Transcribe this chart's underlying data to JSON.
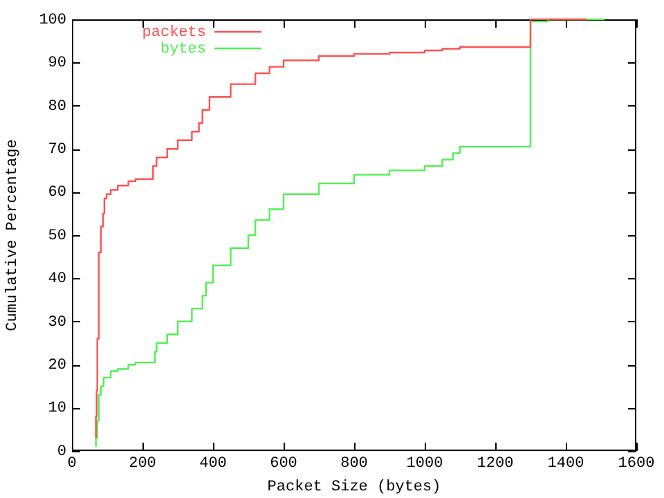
{
  "chart_data": {
    "type": "step",
    "xlabel": "Packet Size (bytes)",
    "ylabel": "Cumulative Percentage",
    "xlim": [
      0,
      1600
    ],
    "xticks": [
      0,
      200,
      400,
      600,
      800,
      1000,
      1200,
      1400,
      1600
    ],
    "ylim": [
      0,
      100
    ],
    "yticks": [
      0,
      10,
      20,
      30,
      40,
      50,
      60,
      70,
      80,
      90,
      100
    ],
    "grid": false,
    "legend": "top left",
    "marker": "none",
    "line_style": "solid",
    "series": [
      {
        "name": "packets",
        "color": "#ff5050",
        "x": [
          68,
          70,
          72,
          76,
          82,
          88,
          92,
          98,
          110,
          130,
          160,
          180,
          230,
          240,
          270,
          300,
          340,
          360,
          370,
          390,
          450,
          520,
          560,
          600,
          700,
          800,
          900,
          1000,
          1050,
          1100,
          1200,
          1300,
          1300,
          1350,
          1460
        ],
        "values": [
          3,
          8,
          14,
          26,
          46,
          52,
          55,
          58.5,
          59.5,
          60.5,
          61.5,
          62.5,
          63,
          66,
          68,
          70,
          72,
          74,
          76,
          79,
          82,
          85,
          87.5,
          89,
          90.5,
          91.5,
          92,
          92.3,
          92.8,
          93.2,
          93.6,
          93.6,
          99.5,
          100,
          100
        ]
      },
      {
        "name": "bytes",
        "color": "#50f050",
        "x": [
          68,
          72,
          76,
          82,
          90,
          110,
          130,
          160,
          180,
          235,
          240,
          270,
          300,
          340,
          370,
          380,
          400,
          450,
          500,
          520,
          560,
          600,
          700,
          800,
          900,
          1000,
          1050,
          1080,
          1100,
          1200,
          1300,
          1300,
          1350,
          1510
        ],
        "values": [
          1,
          3,
          7,
          13,
          15,
          17,
          18.5,
          19,
          20,
          20.5,
          23,
          25,
          27,
          30,
          33,
          36,
          39,
          43,
          47,
          50,
          53.5,
          56,
          59.5,
          62,
          64,
          65,
          66,
          67.5,
          69,
          70.5,
          70.5,
          98.5,
          99.5,
          100
        ]
      }
    ]
  }
}
